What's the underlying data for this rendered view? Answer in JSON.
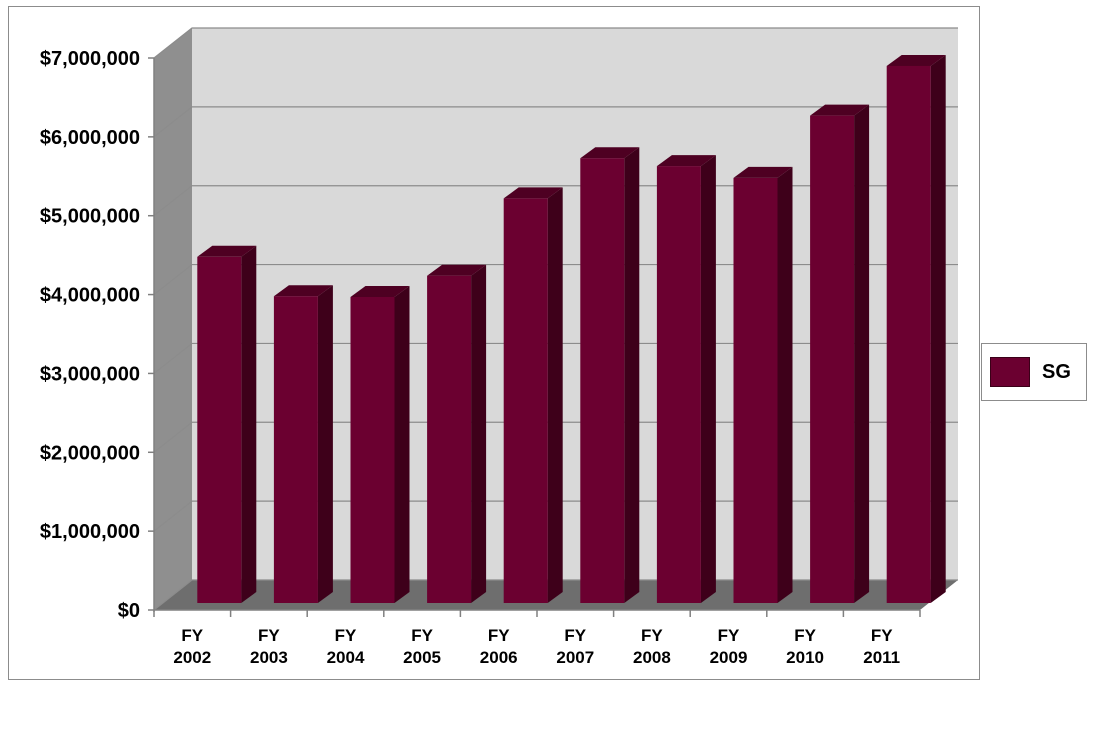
{
  "chart_data": {
    "type": "bar",
    "categories": [
      [
        "FY",
        "2002"
      ],
      [
        "FY",
        "2003"
      ],
      [
        "FY",
        "2004"
      ],
      [
        "FY",
        "2005"
      ],
      [
        "FY",
        "2006"
      ],
      [
        "FY",
        "2007"
      ],
      [
        "FY",
        "2008"
      ],
      [
        "FY",
        "2009"
      ],
      [
        "FY",
        "2010"
      ],
      [
        "FY",
        "2011"
      ]
    ],
    "series": [
      {
        "name": "SG",
        "color": "#6b0030",
        "values": [
          4530000,
          4030000,
          4020000,
          4290000,
          5270000,
          5780000,
          5680000,
          5530000,
          6320000,
          6950000
        ]
      }
    ],
    "y_ticks": [
      "$0",
      "$1,000,000",
      "$2,000,000",
      "$3,000,000",
      "$4,000,000",
      "$5,000,000",
      "$6,000,000",
      "$7,000,000"
    ],
    "ylim": [
      0,
      7000000
    ],
    "legend_position": "right",
    "grid": true,
    "style": "3d-column",
    "colors": {
      "bar_front": "#6b0030",
      "bar_top": "#4e0022",
      "bar_side": "#3e001a",
      "back_wall": "#d9d9d9",
      "side_wall": "#8f8f8f",
      "floor": "#6e6e6e",
      "gridline": "#8c8c8c"
    }
  },
  "legend": {
    "label": "SG"
  }
}
